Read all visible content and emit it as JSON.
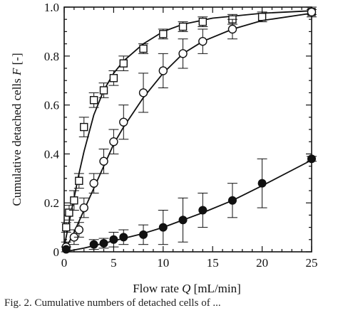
{
  "chart_data": {
    "type": "scatter",
    "title": "",
    "xlabel_prefix": "Flow rate ",
    "xlabel_var": "Q",
    "xlabel_suffix": " [mL/min]",
    "ylabel_prefix": "Cumulative detached cells ",
    "ylabel_var": "F",
    "ylabel_suffix": " [-]",
    "xlim": [
      0,
      25
    ],
    "ylim": [
      0,
      1.0
    ],
    "xticks": [
      0,
      5,
      10,
      15,
      20,
      25
    ],
    "yticks": [
      0,
      0.2,
      0.4,
      0.6,
      0.8,
      1.0
    ],
    "ytick_labels": [
      "0",
      "0.2",
      "0.4",
      "0.6",
      "0.8",
      "1.0"
    ],
    "grid": false,
    "series": [
      {
        "marker": "square-open",
        "x": [
          0.2,
          0.5,
          1,
          1.5,
          2,
          3,
          4,
          5,
          6,
          8,
          10,
          12,
          14,
          17,
          20,
          25
        ],
        "y": [
          0.1,
          0.16,
          0.21,
          0.29,
          0.51,
          0.62,
          0.66,
          0.71,
          0.77,
          0.83,
          0.89,
          0.92,
          0.94,
          0.95,
          0.96,
          0.98
        ],
        "err": [
          0.02,
          0.03,
          0.04,
          0.03,
          0.04,
          0.03,
          0.03,
          0.03,
          0.03,
          0.02,
          0.02,
          0.02,
          0.02,
          0.02,
          0.02,
          0.01
        ],
        "fit": [
          [
            0,
            0.02
          ],
          [
            0.5,
            0.12
          ],
          [
            1,
            0.22
          ],
          [
            1.5,
            0.32
          ],
          [
            2,
            0.41
          ],
          [
            3,
            0.56
          ],
          [
            4,
            0.66
          ],
          [
            5,
            0.73
          ],
          [
            6,
            0.78
          ],
          [
            8,
            0.85
          ],
          [
            10,
            0.9
          ],
          [
            12,
            0.93
          ],
          [
            15,
            0.955
          ],
          [
            20,
            0.975
          ],
          [
            25,
            0.985
          ]
        ]
      },
      {
        "marker": "circle-open",
        "x": [
          0.2,
          1,
          1.5,
          2,
          3,
          4,
          5,
          6,
          8,
          10,
          12,
          14,
          17,
          25
        ],
        "y": [
          0.02,
          0.06,
          0.09,
          0.18,
          0.28,
          0.37,
          0.45,
          0.53,
          0.65,
          0.74,
          0.81,
          0.86,
          0.91,
          0.98
        ],
        "err": [
          0.02,
          0.03,
          0.03,
          0.04,
          0.04,
          0.05,
          0.05,
          0.07,
          0.08,
          0.07,
          0.06,
          0.05,
          0.04,
          0.02
        ],
        "fit": [
          [
            0,
            0.0
          ],
          [
            1,
            0.08
          ],
          [
            2,
            0.17
          ],
          [
            3,
            0.26
          ],
          [
            4,
            0.35
          ],
          [
            5,
            0.44
          ],
          [
            6,
            0.51
          ],
          [
            8,
            0.63
          ],
          [
            10,
            0.73
          ],
          [
            12,
            0.81
          ],
          [
            14,
            0.86
          ],
          [
            17,
            0.91
          ],
          [
            20,
            0.945
          ],
          [
            25,
            0.975
          ]
        ]
      },
      {
        "marker": "circle-filled",
        "x": [
          0.2,
          3,
          4,
          5,
          6,
          8,
          10,
          12,
          14,
          17,
          20,
          25
        ],
        "y": [
          0.01,
          0.03,
          0.035,
          0.05,
          0.06,
          0.07,
          0.1,
          0.13,
          0.17,
          0.21,
          0.28,
          0.38
        ],
        "err": [
          0.01,
          0.02,
          0.02,
          0.03,
          0.03,
          0.04,
          0.07,
          0.09,
          0.07,
          0.07,
          0.1,
          0.01
        ],
        "fit": [
          [
            0,
            0.0
          ],
          [
            2,
            0.015
          ],
          [
            4,
            0.035
          ],
          [
            6,
            0.055
          ],
          [
            8,
            0.075
          ],
          [
            10,
            0.1
          ],
          [
            12,
            0.13
          ],
          [
            14,
            0.16
          ],
          [
            17,
            0.21
          ],
          [
            20,
            0.27
          ],
          [
            25,
            0.375
          ]
        ]
      }
    ]
  },
  "caption": {
    "text": "Fig. 2. Cumulative numbers of detached cells of ..."
  }
}
